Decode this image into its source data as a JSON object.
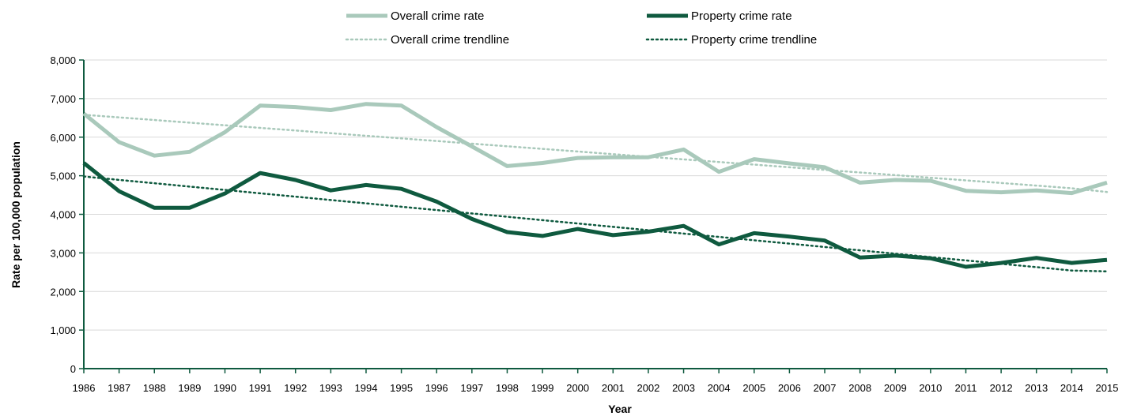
{
  "chart_data": {
    "type": "line",
    "title": "",
    "xlabel": "Year",
    "ylabel": "Rate per 100,000 population",
    "ylim": [
      0,
      8000
    ],
    "y_ticks": [
      "0",
      "1,000",
      "2,000",
      "3,000",
      "4,000",
      "5,000",
      "6,000",
      "7,000",
      "8,000"
    ],
    "x": [
      "1986",
      "1987",
      "1988",
      "1989",
      "1990",
      "1991",
      "1992",
      "1993",
      "1994",
      "1995",
      "1996",
      "1997",
      "1998",
      "1999",
      "2000",
      "2001",
      "2002",
      "2003",
      "2004",
      "2005",
      "2006",
      "2007",
      "2008",
      "2009",
      "2010",
      "2011",
      "2012",
      "2013",
      "2014",
      "2015"
    ],
    "grid": true,
    "legend_position": "top",
    "series": [
      {
        "name": "Overall crime rate",
        "color": "#a9c9bb",
        "style": "solid",
        "values": [
          6610,
          5870,
          5520,
          5620,
          6130,
          6820,
          6780,
          6700,
          6860,
          6820,
          6260,
          5760,
          5250,
          5330,
          5460,
          5480,
          5480,
          5680,
          5100,
          5430,
          5320,
          5220,
          4820,
          4890,
          4870,
          4610,
          4570,
          4620,
          4550,
          4820
        ]
      },
      {
        "name": "Property crime rate",
        "color": "#0f5a3f",
        "style": "solid",
        "values": [
          5330,
          4600,
          4170,
          4170,
          4540,
          5070,
          4890,
          4620,
          4760,
          4660,
          4330,
          3880,
          3540,
          3440,
          3620,
          3460,
          3550,
          3700,
          3220,
          3510,
          3420,
          3320,
          2880,
          2930,
          2860,
          2640,
          2740,
          2870,
          2740,
          2820
        ]
      },
      {
        "name": "Overall crime trendline",
        "color": "#a9c9bb",
        "style": "dotted",
        "values": [
          6580,
          6512,
          6444,
          6376,
          6308,
          6240,
          6172,
          6104,
          6036,
          5968,
          5900,
          5832,
          5764,
          5696,
          5628,
          5560,
          5492,
          5424,
          5356,
          5288,
          5220,
          5152,
          5084,
          5016,
          4948,
          4880,
          4812,
          4744,
          4676,
          4580
        ]
      },
      {
        "name": "Property crime trendline",
        "color": "#0f5a3f",
        "style": "dotted",
        "values": [
          4980,
          4893,
          4806,
          4719,
          4632,
          4545,
          4458,
          4371,
          4284,
          4197,
          4110,
          4023,
          3936,
          3849,
          3762,
          3675,
          3588,
          3501,
          3414,
          3327,
          3240,
          3153,
          3066,
          2979,
          2892,
          2805,
          2718,
          2631,
          2544,
          2520
        ]
      }
    ]
  }
}
